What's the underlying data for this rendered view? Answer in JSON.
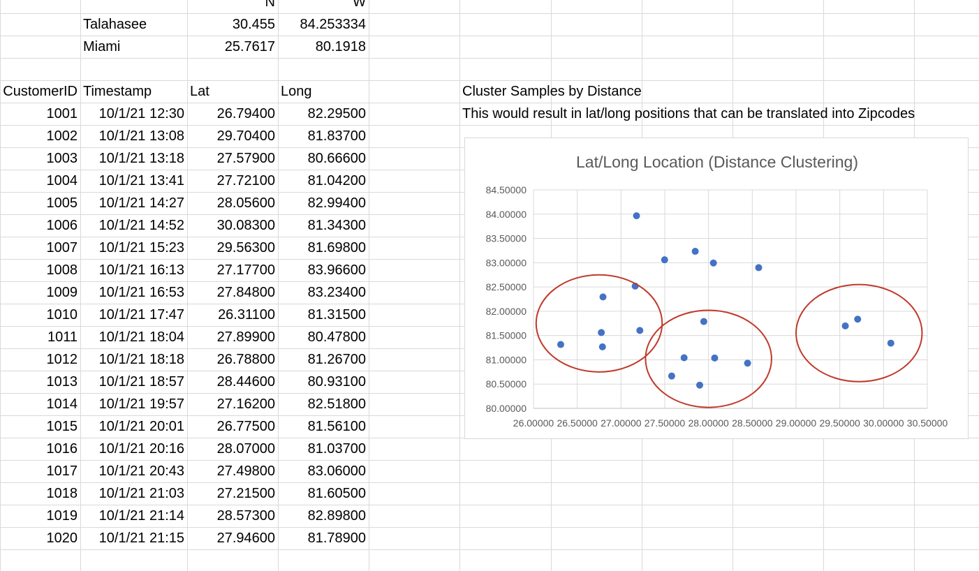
{
  "top_rows": [
    {
      "label": "",
      "lat": "N",
      "long": "W"
    },
    {
      "label": "Talahasee",
      "lat": "30.455",
      "long": "84.253334"
    },
    {
      "label": "Miami",
      "lat": "25.7617",
      "long": "80.1918"
    }
  ],
  "table": {
    "headers": [
      "CustomerID",
      "Timestamp",
      "Lat",
      "Long"
    ],
    "rows": [
      [
        "1001",
        "10/1/21 12:30",
        "26.79400",
        "82.29500"
      ],
      [
        "1002",
        "10/1/21 13:08",
        "29.70400",
        "81.83700"
      ],
      [
        "1003",
        "10/1/21 13:18",
        "27.57900",
        "80.66600"
      ],
      [
        "1004",
        "10/1/21 13:41",
        "27.72100",
        "81.04200"
      ],
      [
        "1005",
        "10/1/21 14:27",
        "28.05600",
        "82.99400"
      ],
      [
        "1006",
        "10/1/21 14:52",
        "30.08300",
        "81.34300"
      ],
      [
        "1007",
        "10/1/21 15:23",
        "29.56300",
        "81.69800"
      ],
      [
        "1008",
        "10/1/21 16:13",
        "27.17700",
        "83.96600"
      ],
      [
        "1009",
        "10/1/21 16:53",
        "27.84800",
        "83.23400"
      ],
      [
        "1010",
        "10/1/21 17:47",
        "26.31100",
        "81.31500"
      ],
      [
        "1011",
        "10/1/21 18:04",
        "27.89900",
        "80.47800"
      ],
      [
        "1012",
        "10/1/21 18:18",
        "26.78800",
        "81.26700"
      ],
      [
        "1013",
        "10/1/21 18:57",
        "28.44600",
        "80.93100"
      ],
      [
        "1014",
        "10/1/21 19:57",
        "27.16200",
        "82.51800"
      ],
      [
        "1015",
        "10/1/21 20:01",
        "26.77500",
        "81.56100"
      ],
      [
        "1016",
        "10/1/21 20:16",
        "28.07000",
        "81.03700"
      ],
      [
        "1017",
        "10/1/21 20:43",
        "27.49800",
        "83.06000"
      ],
      [
        "1018",
        "10/1/21 21:03",
        "27.21500",
        "81.60500"
      ],
      [
        "1019",
        "10/1/21 21:14",
        "28.57300",
        "82.89800"
      ],
      [
        "1020",
        "10/1/21 21:15",
        "27.94600",
        "81.78900"
      ]
    ]
  },
  "notes": {
    "line1": "Cluster Samples by Distance",
    "line2": "This would result in lat/long positions that can be translated into Zipcodes"
  },
  "chart_data": {
    "type": "scatter",
    "title": "Lat/Long Location (Distance Clustering)",
    "xlabel": "",
    "ylabel": "",
    "xlim": [
      26.0,
      30.5
    ],
    "ylim": [
      80.0,
      84.5
    ],
    "x_ticks": [
      "26.00000",
      "26.50000",
      "27.00000",
      "27.50000",
      "28.00000",
      "28.50000",
      "29.00000",
      "29.50000",
      "30.00000",
      "30.50000"
    ],
    "y_ticks": [
      "80.00000",
      "80.50000",
      "81.00000",
      "81.50000",
      "82.00000",
      "82.50000",
      "83.00000",
      "83.50000",
      "84.00000",
      "84.50000"
    ],
    "grid": true,
    "marker_color": "#4472c4",
    "annotation_color": "#c0392b",
    "points": [
      {
        "x": 26.794,
        "y": 82.295
      },
      {
        "x": 29.704,
        "y": 81.837
      },
      {
        "x": 27.579,
        "y": 80.666
      },
      {
        "x": 27.721,
        "y": 81.042
      },
      {
        "x": 28.056,
        "y": 82.994
      },
      {
        "x": 30.083,
        "y": 81.343
      },
      {
        "x": 29.563,
        "y": 81.698
      },
      {
        "x": 27.177,
        "y": 83.966
      },
      {
        "x": 27.848,
        "y": 83.234
      },
      {
        "x": 26.311,
        "y": 81.315
      },
      {
        "x": 27.899,
        "y": 80.478
      },
      {
        "x": 26.788,
        "y": 81.267
      },
      {
        "x": 28.446,
        "y": 80.931
      },
      {
        "x": 27.162,
        "y": 82.518
      },
      {
        "x": 26.775,
        "y": 81.561
      },
      {
        "x": 28.07,
        "y": 81.037
      },
      {
        "x": 27.498,
        "y": 83.06
      },
      {
        "x": 27.215,
        "y": 81.605
      },
      {
        "x": 28.573,
        "y": 82.898
      },
      {
        "x": 27.946,
        "y": 81.789
      }
    ],
    "clusters": [
      {
        "cx": 26.75,
        "cy": 81.75,
        "rx": 0.72,
        "ry": 1.0
      },
      {
        "cx": 28.0,
        "cy": 81.02,
        "rx": 0.72,
        "ry": 1.0
      },
      {
        "cx": 29.72,
        "cy": 81.55,
        "rx": 0.72,
        "ry": 1.0
      }
    ]
  }
}
